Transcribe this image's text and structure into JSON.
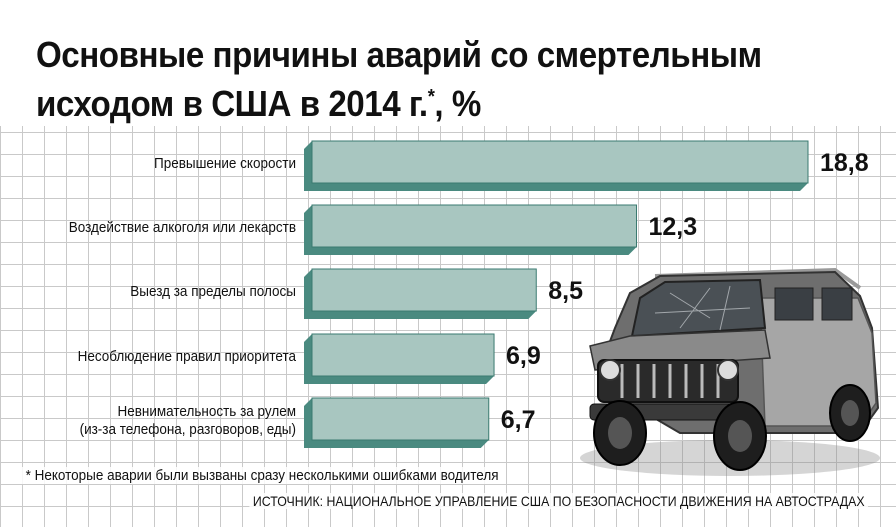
{
  "chart_data": {
    "type": "bar",
    "orientation": "horizontal",
    "title": "Основные причины аварий со смертельным исходом в США в 2014 г.*, %",
    "title_main": "Основные причины аварий со смертельным",
    "title_line2": "исходом в США в 2014 г.",
    "title_mark": "*",
    "title_unit": ", %",
    "categories": [
      [
        "Превышение скорости"
      ],
      [
        "Воздействие алкоголя или лекарств"
      ],
      [
        "Выезд за пределы полосы"
      ],
      [
        "Несоблюдение правил приоритета"
      ],
      [
        "Невнимательность за рулем",
        "(из-за телефона, разговоров, еды)"
      ]
    ],
    "values": [
      18.8,
      12.3,
      8.5,
      6.9,
      6.7
    ],
    "value_labels": [
      "18,8",
      "12,3",
      "8,5",
      "6,9",
      "6,7"
    ],
    "xlim": [
      0,
      18.8
    ],
    "grid": true,
    "colors": {
      "bar_front": "#a8c6c0",
      "bar_side": "#4a8a80",
      "bar_edge": "#3a7a70",
      "grid": "#c9c9c9"
    }
  },
  "footnote": "* Некоторые аварии были вызваны сразу несколькими ошибками водителя",
  "source": "ИСТОЧНИК: НАЦИОНАЛЬНОЕ УПРАВЛЕНИЕ США ПО БЕЗОПАСНОСТИ ДВИЖЕНИЯ НА АВТОСТРАДАХ",
  "illustration": "damaged-suv-photo"
}
